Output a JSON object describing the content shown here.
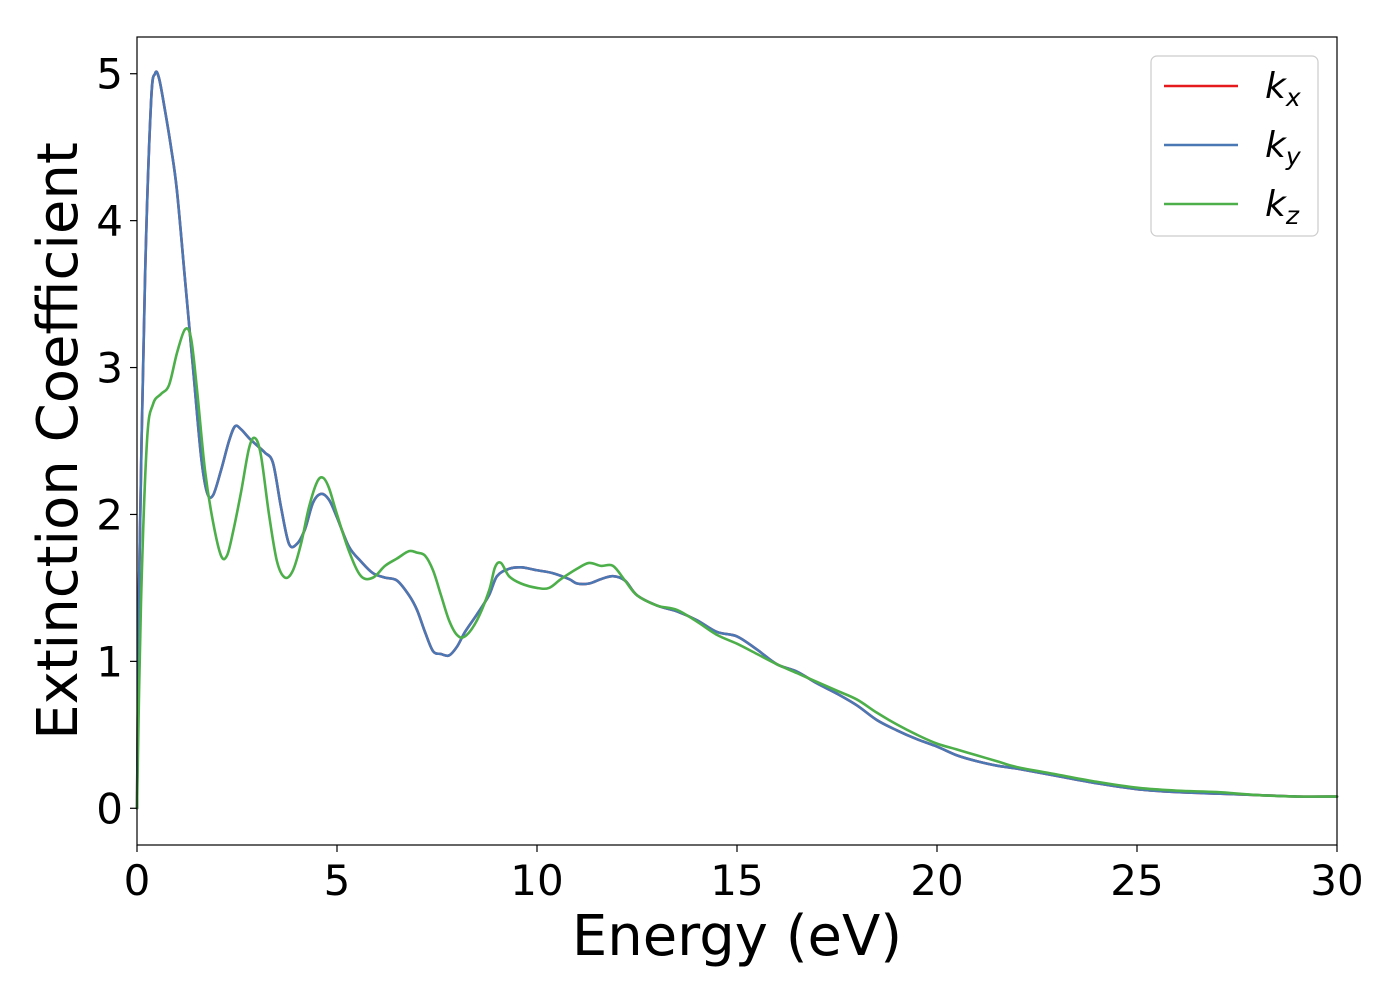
{
  "chart_data": {
    "type": "line",
    "xlabel": "Energy (eV)",
    "ylabel": "Extinction Coefficient",
    "xlim": [
      0,
      30
    ],
    "ylim": [
      -0.25,
      5.25
    ],
    "xticks": [
      0,
      5,
      10,
      15,
      20,
      25,
      30
    ],
    "yticks": [
      0,
      1,
      2,
      3,
      4,
      5
    ],
    "grid": false,
    "legend_position": "top-right",
    "series": [
      {
        "name": "k_x",
        "legend_base": "k",
        "legend_sub": "x",
        "color": "#e41a1c",
        "x": [
          0,
          0.05,
          0.2,
          0.35,
          0.45,
          0.55,
          0.7,
          0.85,
          1.0,
          1.2,
          1.4,
          1.6,
          1.75,
          1.9,
          2.1,
          2.3,
          2.45,
          2.6,
          2.8,
          3.0,
          3.2,
          3.4,
          3.6,
          3.8,
          4.0,
          4.2,
          4.4,
          4.6,
          4.8,
          5.0,
          5.3,
          5.6,
          5.9,
          6.2,
          6.5,
          6.8,
          7.0,
          7.2,
          7.4,
          7.6,
          7.8,
          8.0,
          8.2,
          8.5,
          8.8,
          9.0,
          9.3,
          9.6,
          10.0,
          10.4,
          10.8,
          11.0,
          11.3,
          11.6,
          11.9,
          12.2,
          12.5,
          13.0,
          13.5,
          14.0,
          14.5,
          15.0,
          15.5,
          16.0,
          16.5,
          17.0,
          17.5,
          18.0,
          18.5,
          19.0,
          19.5,
          20.0,
          20.5,
          21.0,
          21.5,
          22.0,
          23.0,
          24.0,
          25.0,
          26.0,
          27.0,
          28.0,
          29.0,
          30.0
        ],
        "y": [
          0.0,
          1.5,
          3.6,
          4.8,
          5.0,
          4.97,
          4.75,
          4.5,
          4.2,
          3.6,
          3.0,
          2.4,
          2.15,
          2.13,
          2.3,
          2.5,
          2.6,
          2.58,
          2.52,
          2.47,
          2.42,
          2.35,
          2.05,
          1.8,
          1.8,
          1.9,
          2.08,
          2.14,
          2.1,
          1.98,
          1.78,
          1.68,
          1.6,
          1.57,
          1.55,
          1.45,
          1.35,
          1.2,
          1.07,
          1.05,
          1.04,
          1.1,
          1.2,
          1.32,
          1.45,
          1.58,
          1.63,
          1.64,
          1.62,
          1.6,
          1.56,
          1.53,
          1.53,
          1.56,
          1.58,
          1.55,
          1.45,
          1.38,
          1.34,
          1.28,
          1.2,
          1.17,
          1.08,
          0.98,
          0.93,
          0.85,
          0.78,
          0.7,
          0.6,
          0.53,
          0.47,
          0.42,
          0.36,
          0.32,
          0.29,
          0.27,
          0.22,
          0.17,
          0.13,
          0.11,
          0.1,
          0.09,
          0.08,
          0.08
        ]
      },
      {
        "name": "k_y",
        "legend_base": "k",
        "legend_sub": "y",
        "color": "#4a78b4",
        "x": [
          0,
          0.05,
          0.2,
          0.35,
          0.45,
          0.55,
          0.7,
          0.85,
          1.0,
          1.2,
          1.4,
          1.6,
          1.75,
          1.9,
          2.1,
          2.3,
          2.45,
          2.6,
          2.8,
          3.0,
          3.2,
          3.4,
          3.6,
          3.8,
          4.0,
          4.2,
          4.4,
          4.6,
          4.8,
          5.0,
          5.3,
          5.6,
          5.9,
          6.2,
          6.5,
          6.8,
          7.0,
          7.2,
          7.4,
          7.6,
          7.8,
          8.0,
          8.2,
          8.5,
          8.8,
          9.0,
          9.3,
          9.6,
          10.0,
          10.4,
          10.8,
          11.0,
          11.3,
          11.6,
          11.9,
          12.2,
          12.5,
          13.0,
          13.5,
          14.0,
          14.5,
          15.0,
          15.5,
          16.0,
          16.5,
          17.0,
          17.5,
          18.0,
          18.5,
          19.0,
          19.5,
          20.0,
          20.5,
          21.0,
          21.5,
          22.0,
          23.0,
          24.0,
          25.0,
          26.0,
          27.0,
          28.0,
          29.0,
          30.0
        ],
        "y": [
          0.0,
          1.5,
          3.6,
          4.8,
          5.0,
          4.97,
          4.75,
          4.5,
          4.2,
          3.6,
          3.0,
          2.4,
          2.15,
          2.13,
          2.3,
          2.5,
          2.6,
          2.58,
          2.52,
          2.47,
          2.42,
          2.35,
          2.05,
          1.8,
          1.8,
          1.9,
          2.08,
          2.14,
          2.1,
          1.98,
          1.78,
          1.68,
          1.6,
          1.57,
          1.55,
          1.45,
          1.35,
          1.2,
          1.07,
          1.05,
          1.04,
          1.1,
          1.2,
          1.32,
          1.45,
          1.58,
          1.63,
          1.64,
          1.62,
          1.6,
          1.56,
          1.53,
          1.53,
          1.56,
          1.58,
          1.55,
          1.45,
          1.38,
          1.34,
          1.28,
          1.2,
          1.17,
          1.08,
          0.98,
          0.93,
          0.85,
          0.78,
          0.7,
          0.6,
          0.53,
          0.47,
          0.42,
          0.36,
          0.32,
          0.29,
          0.27,
          0.22,
          0.17,
          0.13,
          0.11,
          0.1,
          0.09,
          0.08,
          0.08
        ]
      },
      {
        "name": "k_z",
        "legend_base": "k",
        "legend_sub": "z",
        "color": "#4daf4a",
        "x": [
          0,
          0.1,
          0.25,
          0.4,
          0.6,
          0.8,
          1.0,
          1.2,
          1.35,
          1.5,
          1.7,
          1.9,
          2.1,
          2.25,
          2.4,
          2.6,
          2.8,
          2.95,
          3.1,
          3.3,
          3.5,
          3.7,
          3.9,
          4.1,
          4.3,
          4.5,
          4.65,
          4.8,
          5.0,
          5.3,
          5.6,
          5.9,
          6.2,
          6.5,
          6.8,
          7.0,
          7.2,
          7.4,
          7.6,
          7.8,
          8.0,
          8.2,
          8.5,
          8.8,
          8.95,
          9.1,
          9.3,
          9.6,
          10.0,
          10.3,
          10.6,
          11.0,
          11.3,
          11.6,
          11.9,
          12.2,
          12.5,
          13.0,
          13.5,
          14.0,
          14.5,
          15.0,
          15.5,
          16.0,
          16.5,
          17.0,
          17.5,
          18.0,
          18.5,
          19.0,
          19.5,
          20.0,
          20.5,
          21.0,
          21.5,
          22.0,
          23.0,
          24.0,
          25.0,
          26.0,
          27.0,
          28.0,
          29.0,
          30.0
        ],
        "y": [
          0.0,
          1.4,
          2.5,
          2.75,
          2.82,
          2.88,
          3.1,
          3.26,
          3.2,
          2.85,
          2.3,
          1.95,
          1.72,
          1.72,
          1.88,
          2.15,
          2.45,
          2.52,
          2.4,
          2.0,
          1.68,
          1.57,
          1.62,
          1.8,
          2.05,
          2.22,
          2.25,
          2.18,
          2.0,
          1.75,
          1.58,
          1.57,
          1.65,
          1.7,
          1.75,
          1.74,
          1.72,
          1.62,
          1.45,
          1.28,
          1.18,
          1.17,
          1.28,
          1.48,
          1.64,
          1.67,
          1.58,
          1.53,
          1.5,
          1.5,
          1.56,
          1.63,
          1.67,
          1.65,
          1.65,
          1.55,
          1.45,
          1.38,
          1.35,
          1.27,
          1.18,
          1.12,
          1.05,
          0.98,
          0.92,
          0.86,
          0.8,
          0.74,
          0.65,
          0.57,
          0.5,
          0.44,
          0.4,
          0.36,
          0.32,
          0.28,
          0.23,
          0.18,
          0.14,
          0.12,
          0.11,
          0.09,
          0.08,
          0.08
        ]
      }
    ]
  }
}
